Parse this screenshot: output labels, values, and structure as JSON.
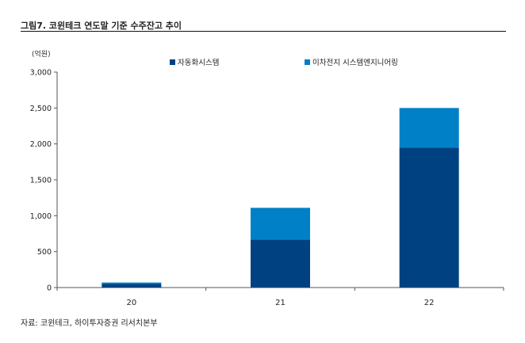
{
  "title": "그림7.  코윈테크 연도말 기준 수주잔고 추이",
  "source": "자료: 코윈테크, 하이투자증권 리서치본부",
  "chart_data": {
    "type": "bar",
    "stacked": true,
    "unit_label": "(억원)",
    "categories": [
      "20",
      "21",
      "22"
    ],
    "series": [
      {
        "name": "자동화시스템",
        "color": "#004281",
        "values": [
          50,
          670,
          1950
        ]
      },
      {
        "name": "이차전지 시스템엔지니어링",
        "color": "#0080c6",
        "values": [
          20,
          440,
          550
        ]
      }
    ],
    "ylim": [
      0,
      3000
    ],
    "yticks": [
      0,
      500,
      1000,
      1500,
      2000,
      2500,
      3000
    ],
    "ytick_labels": [
      "0",
      "500",
      "1,000",
      "1,500",
      "2,000",
      "2,500",
      "3,000"
    ],
    "legend_position": "top",
    "grid": false
  }
}
